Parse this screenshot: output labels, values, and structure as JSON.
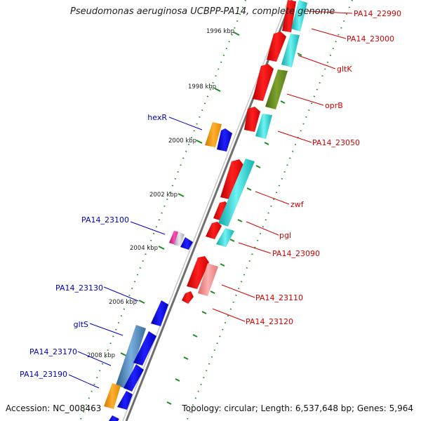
{
  "title": "Pseudomonas aeruginosa UCBPP-PA14, complete genome",
  "footer": {
    "accession": "Accession: NC_008463",
    "topology": "Topology: circular; Length: 6,537,648 bp; Genes: 5,964"
  },
  "ticks": [
    "1996 kbp",
    "1998 kbp",
    "2000 kbp",
    "2002 kbp",
    "2004 kbp",
    "2006 kbp",
    "2008 kbp"
  ],
  "colors": {
    "backbone": "#7a7a7a",
    "forward_label": "#d40000",
    "reverse_label": "#0000c8",
    "tick": "#1f8a1f",
    "gene_red": "#ff1a1a",
    "gene_cyan": "#19d3d3",
    "gene_blue": "#1010e8",
    "gene_olive": "#6b8e23",
    "gene_pink": "#f08c8c",
    "gene_orange": "#ff9a00",
    "gene_steel": "#4682b4",
    "gene_magenta": "#e0208a"
  },
  "forward_labels": [
    "PA14_22990",
    "PA14_23000",
    "gltK",
    "oprB",
    "PA14_23050",
    "zwf",
    "pgl",
    "PA14_23090",
    "PA14_23110",
    "PA14_23120"
  ],
  "reverse_labels": [
    "hexR",
    "PA14_23100",
    "PA14_23130",
    "gltS",
    "PA14_23170",
    "PA14_23190"
  ]
}
